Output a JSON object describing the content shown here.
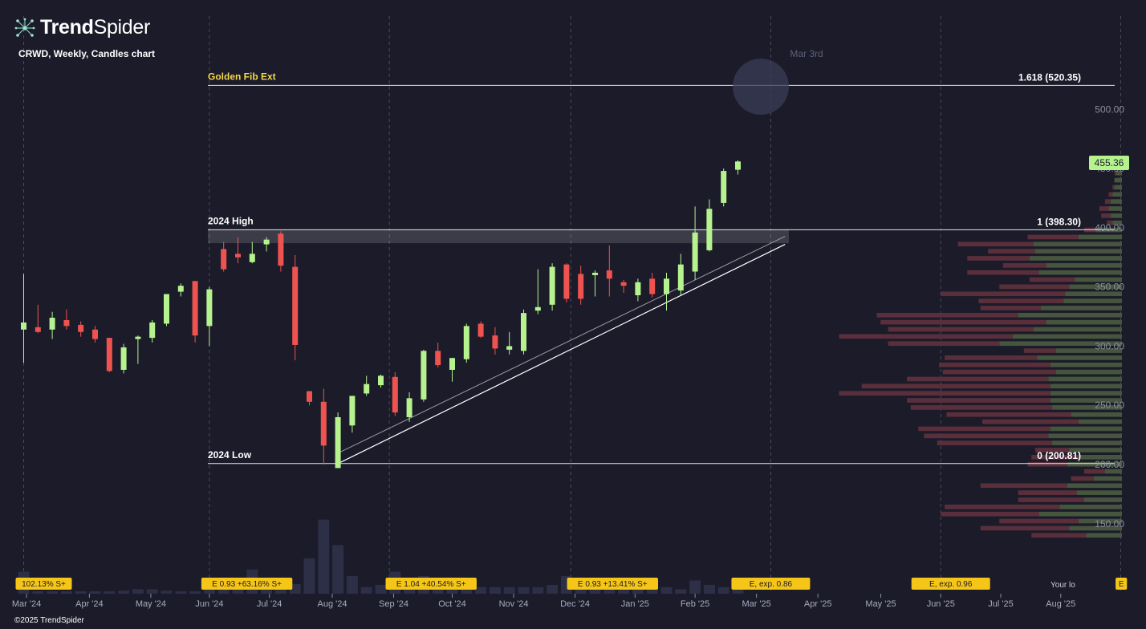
{
  "brand": {
    "name_bold": "Trend",
    "name_light": "Spider",
    "icon": "spider-network-icon"
  },
  "chart_title": "CRWD, Weekly, Candles chart",
  "copyright": "©2025 TrendSpider",
  "current_price": "455.36",
  "your_label": "Your lo",
  "colors": {
    "up": "#b6f38e",
    "down": "#ef5350",
    "background": "#1b1b29",
    "badge": "#f5c518",
    "fib_label": "#f5d84a"
  },
  "chart_data": {
    "type": "candlestick",
    "symbol": "CRWD",
    "interval": "Weekly",
    "ylim": [
      100,
      540
    ],
    "y_ticks": [
      150,
      200,
      250,
      300,
      350,
      400,
      450,
      500
    ],
    "y_tick_labels": [
      "150.00",
      "200.00",
      "250.00",
      "300.00",
      "350.00",
      "400.00",
      "450.00",
      "500.00"
    ],
    "x_labels": [
      "Mar '24",
      "Apr '24",
      "May '24",
      "Jun '24",
      "Jul '24",
      "Aug '24",
      "Sep '24",
      "Oct '24",
      "Nov '24",
      "Dec '24",
      "Jan '25",
      "Feb '25",
      "Mar '25",
      "Apr '25",
      "May '25",
      "Jun '25",
      "Jul '25",
      "Aug '25"
    ],
    "x_label_index": [
      0.2,
      4.6,
      8.9,
      13.0,
      17.2,
      21.6,
      25.9,
      30.0,
      34.3,
      38.6,
      42.8,
      47.0,
      51.3,
      55.6,
      60.0,
      64.2,
      68.4,
      72.6
    ],
    "gridline_index": [
      0.0,
      13.0,
      25.6,
      38.3,
      52.3,
      64.2,
      76.8
    ],
    "candles": [
      {
        "o": 314,
        "h": 361,
        "l": 286,
        "c": 320,
        "v": 5
      },
      {
        "o": 316,
        "h": 335,
        "l": 311,
        "c": 312,
        "v": 0.5
      },
      {
        "o": 314,
        "h": 329,
        "l": 306,
        "c": 324,
        "v": 0.5
      },
      {
        "o": 322,
        "h": 331,
        "l": 314,
        "c": 317,
        "v": 0.5
      },
      {
        "o": 318,
        "h": 321,
        "l": 308,
        "c": 312,
        "v": 0.5
      },
      {
        "o": 314,
        "h": 317,
        "l": 303,
        "c": 306,
        "v": 0.5
      },
      {
        "o": 307,
        "h": 307,
        "l": 278,
        "c": 279,
        "v": 0.5
      },
      {
        "o": 280,
        "h": 302,
        "l": 277,
        "c": 299,
        "v": 0.7
      },
      {
        "o": 306,
        "h": 309,
        "l": 285,
        "c": 308,
        "v": 1.0
      },
      {
        "o": 307,
        "h": 322,
        "l": 303,
        "c": 320,
        "v": 1.0
      },
      {
        "o": 319,
        "h": 344,
        "l": 317,
        "c": 344,
        "v": 0.7
      },
      {
        "o": 346,
        "h": 353,
        "l": 342,
        "c": 351,
        "v": 0.5
      },
      {
        "o": 355,
        "h": 355,
        "l": 303,
        "c": 309,
        "v": 0.5
      },
      {
        "o": 317,
        "h": 350,
        "l": 300,
        "c": 348,
        "v": 2.5
      },
      {
        "o": 382,
        "h": 388,
        "l": 363,
        "c": 365,
        "v": 2.0
      },
      {
        "o": 378,
        "h": 392,
        "l": 370,
        "c": 375,
        "v": 1.5
      },
      {
        "o": 371,
        "h": 388,
        "l": 370,
        "c": 378,
        "v": 5.5
      },
      {
        "o": 386,
        "h": 392,
        "l": 380,
        "c": 390,
        "v": 2.5
      },
      {
        "o": 395,
        "h": 397,
        "l": 363,
        "c": 368,
        "v": 1.0
      },
      {
        "o": 367,
        "h": 377,
        "l": 288,
        "c": 301,
        "v": 2.2
      },
      {
        "o": 262,
        "h": 262,
        "l": 250,
        "c": 253,
        "v": 8.0
      },
      {
        "o": 253,
        "h": 264,
        "l": 200,
        "c": 216,
        "v": 16.8
      },
      {
        "o": 197,
        "h": 244,
        "l": 199,
        "c": 240,
        "v": 11.0
      },
      {
        "o": 233,
        "h": 258,
        "l": 227,
        "c": 258,
        "v": 4.0
      },
      {
        "o": 260,
        "h": 275,
        "l": 258,
        "c": 268,
        "v": 1.5
      },
      {
        "o": 267,
        "h": 276,
        "l": 265,
        "c": 275,
        "v": 2.0
      },
      {
        "o": 274,
        "h": 278,
        "l": 241,
        "c": 244,
        "v": 5.0
      },
      {
        "o": 240,
        "h": 261,
        "l": 236,
        "c": 256,
        "v": 2.5
      },
      {
        "o": 255,
        "h": 297,
        "l": 253,
        "c": 296,
        "v": 4.0
      },
      {
        "o": 296,
        "h": 303,
        "l": 282,
        "c": 284,
        "v": 2.0
      },
      {
        "o": 280,
        "h": 290,
        "l": 270,
        "c": 290,
        "v": 1.5
      },
      {
        "o": 289,
        "h": 319,
        "l": 286,
        "c": 317,
        "v": 2.0
      },
      {
        "o": 319,
        "h": 321,
        "l": 307,
        "c": 308,
        "v": 1.5
      },
      {
        "o": 309,
        "h": 316,
        "l": 293,
        "c": 298,
        "v": 1.5
      },
      {
        "o": 297,
        "h": 312,
        "l": 293,
        "c": 300,
        "v": 1.5
      },
      {
        "o": 296,
        "h": 331,
        "l": 293,
        "c": 328,
        "v": 1.5
      },
      {
        "o": 330,
        "h": 365,
        "l": 327,
        "c": 333,
        "v": 1.5
      },
      {
        "o": 335,
        "h": 370,
        "l": 330,
        "c": 367,
        "v": 2.0
      },
      {
        "o": 369,
        "h": 370,
        "l": 337,
        "c": 340,
        "v": 4.0
      },
      {
        "o": 361,
        "h": 368,
        "l": 335,
        "c": 340,
        "v": 3.0
      },
      {
        "o": 360,
        "h": 364,
        "l": 342,
        "c": 362,
        "v": 1.5
      },
      {
        "o": 364,
        "h": 385,
        "l": 342,
        "c": 357,
        "v": 3.0
      },
      {
        "o": 354,
        "h": 356,
        "l": 345,
        "c": 351,
        "v": 1.0
      },
      {
        "o": 343,
        "h": 357,
        "l": 338,
        "c": 354,
        "v": 1.0
      },
      {
        "o": 357,
        "h": 362,
        "l": 341,
        "c": 344,
        "v": 1.0
      },
      {
        "o": 344,
        "h": 362,
        "l": 330,
        "c": 357,
        "v": 1.5
      },
      {
        "o": 347,
        "h": 378,
        "l": 343,
        "c": 369,
        "v": 1.0
      },
      {
        "o": 363,
        "h": 418,
        "l": 356,
        "c": 396,
        "v": 3.0
      },
      {
        "o": 381,
        "h": 424,
        "l": 380,
        "c": 416,
        "v": 2.0
      },
      {
        "o": 421,
        "h": 450,
        "l": 418,
        "c": 448,
        "v": 1.5
      },
      {
        "o": 449,
        "h": 457,
        "l": 445,
        "c": 456,
        "v": 1.0
      }
    ],
    "volume_profile": [
      {
        "price": 140,
        "up": 1.9,
        "down": 2.9
      },
      {
        "price": 146,
        "up": 2.8,
        "down": 4.7
      },
      {
        "price": 152,
        "up": 2.3,
        "down": 4.2
      },
      {
        "price": 158,
        "up": 4.4,
        "down": 5.2
      },
      {
        "price": 164,
        "up": 3.3,
        "down": 6.1
      },
      {
        "price": 170,
        "up": 2.0,
        "down": 3.5
      },
      {
        "price": 176,
        "up": 2.4,
        "down": 3.1
      },
      {
        "price": 182,
        "up": 2.9,
        "down": 4.6
      },
      {
        "price": 188,
        "up": 1.5,
        "down": 1.2
      },
      {
        "price": 194,
        "up": 0.9,
        "down": 1.1
      },
      {
        "price": 200,
        "up": 2.9,
        "down": 2.1
      },
      {
        "price": 206,
        "up": 2.3,
        "down": 2.5
      },
      {
        "price": 212,
        "up": 2.8,
        "down": 1.8
      },
      {
        "price": 218,
        "up": 3.7,
        "down": 6.1
      },
      {
        "price": 224,
        "up": 3.9,
        "down": 6.6
      },
      {
        "price": 230,
        "up": 3.8,
        "down": 7.0
      },
      {
        "price": 236,
        "up": 2.3,
        "down": 5.1
      },
      {
        "price": 242,
        "up": 2.7,
        "down": 6.6
      },
      {
        "price": 248,
        "up": 3.7,
        "down": 7.5
      },
      {
        "price": 254,
        "up": 3.8,
        "down": 7.6
      },
      {
        "price": 260,
        "up": 3.8,
        "down": 11.2
      },
      {
        "price": 266,
        "up": 3.8,
        "down": 10.0
      },
      {
        "price": 272,
        "up": 3.9,
        "down": 7.5
      },
      {
        "price": 278,
        "up": 3.5,
        "down": 6.0
      },
      {
        "price": 284,
        "up": 3.8,
        "down": 5.9
      },
      {
        "price": 290,
        "up": 4.5,
        "down": 4.9
      },
      {
        "price": 296,
        "up": 3.5,
        "down": 1.7
      },
      {
        "price": 302,
        "up": 6.5,
        "down": 5.9
      },
      {
        "price": 308,
        "up": 5.8,
        "down": 9.2
      },
      {
        "price": 314,
        "up": 4.7,
        "down": 7.7
      },
      {
        "price": 320,
        "up": 4.0,
        "down": 8.8
      },
      {
        "price": 326,
        "up": 5.5,
        "down": 7.5
      },
      {
        "price": 332,
        "up": 4.3,
        "down": 3.2
      },
      {
        "price": 338,
        "up": 3.1,
        "down": 4.5
      },
      {
        "price": 344,
        "up": 3.0,
        "down": 6.6
      },
      {
        "price": 350,
        "up": 2.8,
        "down": 3.7
      },
      {
        "price": 356,
        "up": 2.5,
        "down": 2.4
      },
      {
        "price": 362,
        "up": 4.4,
        "down": 3.8
      },
      {
        "price": 368,
        "up": 4.0,
        "down": 2.3
      },
      {
        "price": 374,
        "up": 4.9,
        "down": 3.3
      },
      {
        "price": 380,
        "up": 4.6,
        "down": 2.5
      },
      {
        "price": 386,
        "up": 4.7,
        "down": 4.0
      },
      {
        "price": 392,
        "up": 2.3,
        "down": 2.7
      },
      {
        "price": 398,
        "up": 1.4,
        "down": 0.6
      },
      {
        "price": 404,
        "up": 0.5,
        "down": 0.3
      },
      {
        "price": 410,
        "up": 0.6,
        "down": 0.5
      },
      {
        "price": 416,
        "up": 0.7,
        "down": 0.5
      },
      {
        "price": 422,
        "up": 0.6,
        "down": 0.3
      },
      {
        "price": 428,
        "up": 0.5,
        "down": 0.2
      },
      {
        "price": 434,
        "up": 0.4,
        "down": 0.1
      },
      {
        "price": 440,
        "up": 0.4,
        "down": 0.0
      },
      {
        "price": 446,
        "up": 0.3,
        "down": 0.1
      },
      {
        "price": 452,
        "up": 0.2,
        "down": 0.0
      }
    ],
    "fib_levels": [
      {
        "ratio_label": "1.618 (520.35)",
        "value": 520.35,
        "name": "Golden Fib Ext",
        "name_color": "#f5d84a"
      },
      {
        "ratio_label": "1 (398.30)",
        "value": 398.3,
        "name": "2024 High",
        "name_color": "#ffffff"
      },
      {
        "ratio_label": "0 (200.81)",
        "value": 200.81,
        "name": "2024 Low",
        "name_color": "#ffffff"
      }
    ],
    "high_zone": {
      "top": 398.3,
      "bottom": 387
    },
    "trendline": {
      "from_index": 22,
      "from_value": 200.81,
      "to_index": 53.3,
      "to_value": 386
    },
    "future_date_label": "Mar 3rd",
    "earnings_badges": [
      {
        "index": 0.0,
        "text": "102.13% S+",
        "wide": false
      },
      {
        "index": 13.0,
        "text": "E 0.93 +63.16% S+",
        "wide": false
      },
      {
        "index": 25.9,
        "text": "E 1.04 +40.54% S+",
        "wide": false
      },
      {
        "index": 38.6,
        "text": "E 0.93 +13.41% S+",
        "wide": false
      },
      {
        "index": 52.3,
        "text": "E, exp. 0.86",
        "wide": true
      },
      {
        "index": 64.9,
        "text": "E, exp. 0.96",
        "wide": true
      },
      {
        "index": 77.0,
        "text": "E",
        "wide": false
      }
    ]
  }
}
